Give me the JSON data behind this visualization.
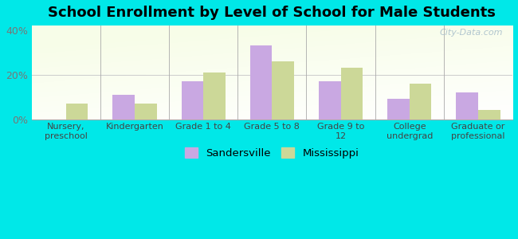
{
  "title": "School Enrollment by Level of School for Male Students",
  "categories": [
    "Nursery,\npreschool",
    "Kindergarten",
    "Grade 1 to 4",
    "Grade 5 to 8",
    "Grade 9 to\n12",
    "College\nundergrad",
    "Graduate or\nprofessional"
  ],
  "sandersville": [
    0,
    11,
    17,
    33,
    17,
    9,
    12
  ],
  "mississippi": [
    7,
    7,
    21,
    26,
    23,
    16,
    4
  ],
  "sandersville_color": "#c9a8e2",
  "mississippi_color": "#ccd898",
  "background_color": "#00e8e8",
  "ylim": [
    0,
    42
  ],
  "yticks": [
    0,
    20,
    40
  ],
  "ytick_labels": [
    "0%",
    "20%",
    "40%"
  ],
  "bar_width": 0.32,
  "title_fontsize": 13,
  "legend_labels": [
    "Sandersville",
    "Mississippi"
  ],
  "watermark": "City-Data.com"
}
